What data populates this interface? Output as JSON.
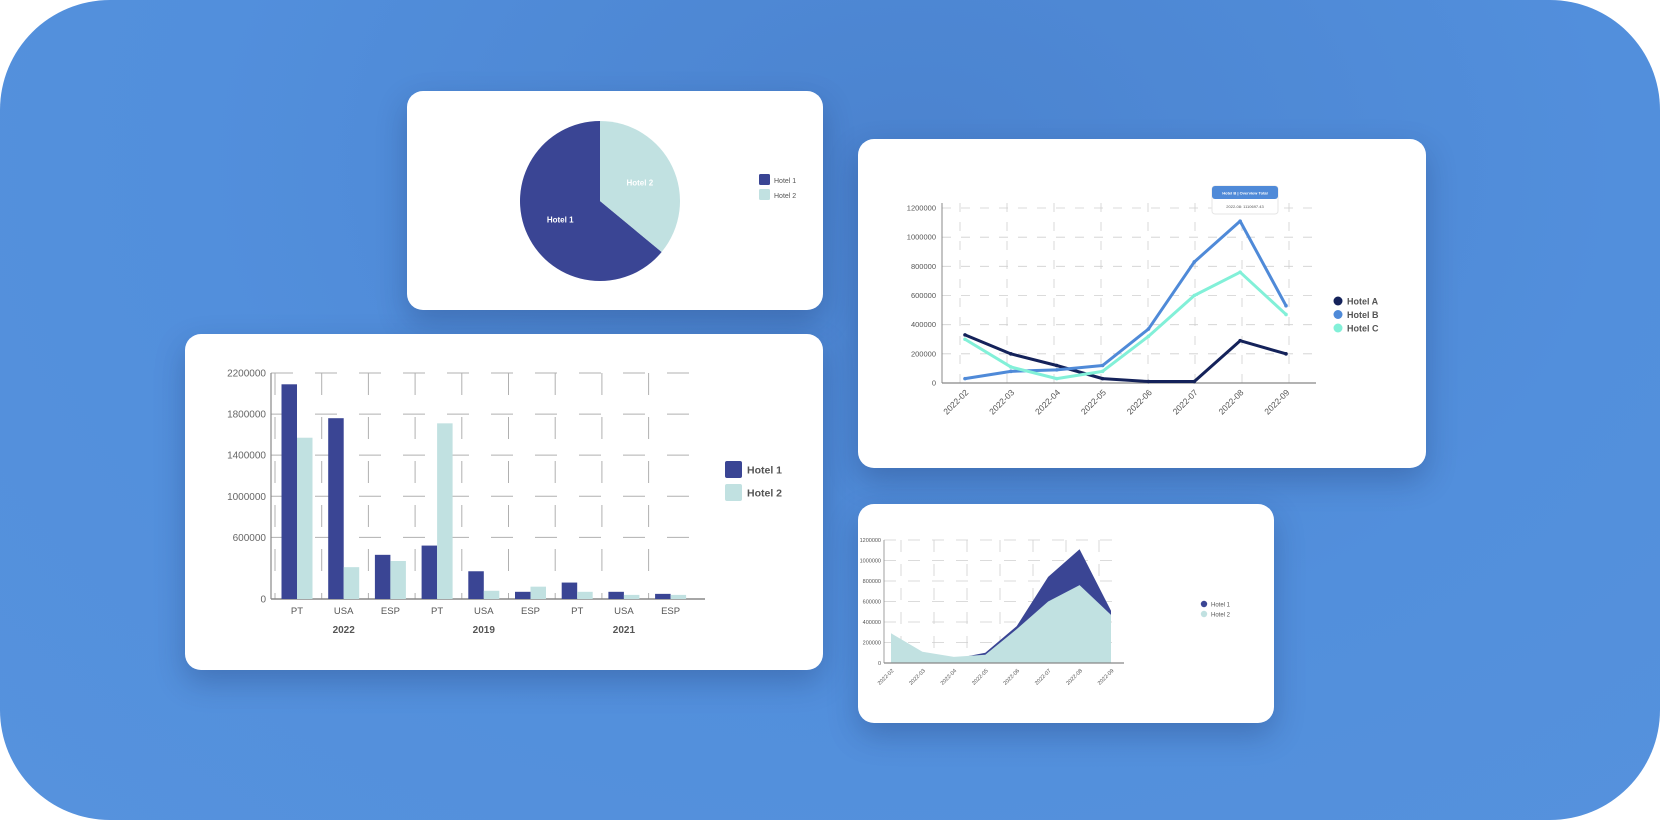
{
  "colors": {
    "hotel1": "#3a4594",
    "hotel2": "#c1e1e1",
    "hotelA": "#14225a",
    "hotelB": "#4f8ad8",
    "hotelC": "#82f0d8",
    "axis": "#888888",
    "grid": "#cfcfcf",
    "text": "#555555"
  },
  "chart_data": [
    {
      "id": "pie",
      "type": "pie",
      "slices": [
        {
          "name": "Hotel 1",
          "value": 64
        },
        {
          "name": "Hotel 2",
          "value": 36
        }
      ],
      "legend": [
        "Hotel 1",
        "Hotel 2"
      ],
      "legend_position": "right"
    },
    {
      "id": "line",
      "type": "line",
      "x": [
        "2022-02",
        "2022-03",
        "2022-04",
        "2022-05",
        "2022-06",
        "2022-07",
        "2022-08",
        "2022-09"
      ],
      "ylim": [
        0,
        1200000
      ],
      "yticks": [
        0,
        200000,
        400000,
        600000,
        800000,
        1000000,
        1200000
      ],
      "series": [
        {
          "name": "Hotel A",
          "values": [
            330000,
            200000,
            120000,
            30000,
            10000,
            10000,
            290000,
            200000
          ]
        },
        {
          "name": "Hotel B",
          "values": [
            30000,
            80000,
            90000,
            120000,
            370000,
            830000,
            1110000,
            530000
          ]
        },
        {
          "name": "Hotel C",
          "values": [
            300000,
            110000,
            30000,
            80000,
            320000,
            600000,
            760000,
            470000
          ]
        }
      ],
      "tooltip": {
        "title": "Hotel B | Overview Total",
        "value": "2022-08: 1110697.43"
      },
      "grid": true,
      "legend_position": "right"
    },
    {
      "id": "bar",
      "type": "bar",
      "categories": [
        "PT",
        "USA",
        "ESP",
        "PT",
        "USA",
        "ESP",
        "PT",
        "USA",
        "ESP"
      ],
      "groups": [
        {
          "label": "2022",
          "start": 0,
          "count": 3
        },
        {
          "label": "2019",
          "start": 3,
          "count": 3
        },
        {
          "label": "2021",
          "start": 6,
          "count": 3
        }
      ],
      "ylim": [
        0,
        2200000
      ],
      "yticks": [
        0,
        600000,
        1000000,
        1400000,
        1800000,
        2200000
      ],
      "series": [
        {
          "name": "Hotel 1",
          "values": [
            2090000,
            1760000,
            430000,
            520000,
            270000,
            70000,
            160000,
            70000,
            50000
          ]
        },
        {
          "name": "Hotel 2",
          "values": [
            1570000,
            310000,
            370000,
            1710000,
            80000,
            120000,
            70000,
            40000,
            40000
          ]
        }
      ],
      "grid": true,
      "legend_position": "right"
    },
    {
      "id": "area",
      "type": "area",
      "x": [
        "2022-02",
        "2022-03",
        "2022-04",
        "2022-05",
        "2022-06",
        "2022-07",
        "2022-08",
        "2022-09"
      ],
      "ylim": [
        0,
        1200000
      ],
      "yticks": [
        0,
        200000,
        400000,
        600000,
        800000,
        1000000,
        1200000
      ],
      "series": [
        {
          "name": "Hotel 1",
          "values": [
            10000,
            70000,
            40000,
            100000,
            360000,
            840000,
            1110000,
            510000
          ]
        },
        {
          "name": "Hotel 2",
          "values": [
            290000,
            110000,
            60000,
            80000,
            330000,
            600000,
            760000,
            470000
          ]
        }
      ],
      "grid": true,
      "legend_position": "right"
    }
  ]
}
